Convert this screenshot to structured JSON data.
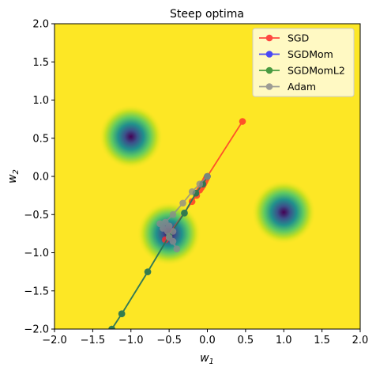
{
  "chart_data": {
    "type": "line",
    "title": "Steep optima",
    "xlabel": "w_1",
    "ylabel": "w_2",
    "xlim": [
      -2,
      2
    ],
    "ylim": [
      -2,
      2
    ],
    "x_ticks": [
      "−2.0",
      "−1.5",
      "−1.0",
      "−0.5",
      "0.0",
      "0.5",
      "1.0",
      "1.5",
      "2.0"
    ],
    "y_ticks": [
      "−2.0",
      "−1.5",
      "−1.0",
      "−0.5",
      "0.0",
      "0.5",
      "1.0",
      "1.5",
      "2.0"
    ],
    "background_color": "#fde725",
    "minima": [
      {
        "x": -1.0,
        "y": 0.52
      },
      {
        "x": 1.0,
        "y": -0.47
      },
      {
        "x": -0.5,
        "y": -0.75
      }
    ],
    "legend_position": "top-right",
    "legend": [
      "SGD",
      "SGDMom",
      "SGDMomL2",
      "Adam"
    ],
    "series": [
      {
        "name": "SGD",
        "color": "#ff2a2a",
        "points": [
          [
            0.46,
            0.72
          ],
          [
            0.0,
            0.0
          ],
          [
            -0.01,
            -0.02
          ],
          [
            -0.02,
            -0.04
          ],
          [
            -0.03,
            -0.06
          ],
          [
            -0.04,
            -0.08
          ],
          [
            -0.05,
            -0.1
          ],
          [
            -0.06,
            -0.12
          ],
          [
            -0.08,
            -0.15
          ],
          [
            -0.1,
            -0.18
          ],
          [
            -0.14,
            -0.25
          ],
          [
            -0.2,
            -0.33
          ],
          [
            -0.55,
            -0.83
          ]
        ]
      },
      {
        "name": "SGDMom",
        "color": "#2a2aff",
        "points": [
          [
            0.0,
            0.0
          ],
          [
            -0.06,
            -0.1
          ],
          [
            -0.15,
            -0.22
          ],
          [
            -0.3,
            -0.48
          ],
          [
            -0.5,
            -0.78
          ],
          [
            -0.78,
            -1.25
          ],
          [
            -1.12,
            -1.8
          ],
          [
            -1.25,
            -2.0
          ]
        ]
      },
      {
        "name": "SGDMomL2",
        "color": "#2a8a2a",
        "points": [
          [
            0.0,
            0.0
          ],
          [
            -0.06,
            -0.1
          ],
          [
            -0.15,
            -0.22
          ],
          [
            -0.3,
            -0.48
          ],
          [
            -0.5,
            -0.78
          ],
          [
            -0.78,
            -1.25
          ],
          [
            -1.12,
            -1.8
          ],
          [
            -1.25,
            -2.0
          ]
        ]
      },
      {
        "name": "Adam",
        "color": "#8c8c8c",
        "points": [
          [
            0.0,
            0.0
          ],
          [
            -0.1,
            -0.1
          ],
          [
            -0.2,
            -0.2
          ],
          [
            -0.32,
            -0.35
          ],
          [
            -0.45,
            -0.5
          ],
          [
            -0.55,
            -0.6
          ],
          [
            -0.62,
            -0.62
          ],
          [
            -0.52,
            -0.72
          ],
          [
            -0.45,
            -0.85
          ],
          [
            -0.4,
            -0.95
          ],
          [
            -0.5,
            -0.8
          ],
          [
            -0.58,
            -0.68
          ],
          [
            -0.5,
            -0.65
          ],
          [
            -0.45,
            -0.72
          ]
        ]
      }
    ]
  }
}
